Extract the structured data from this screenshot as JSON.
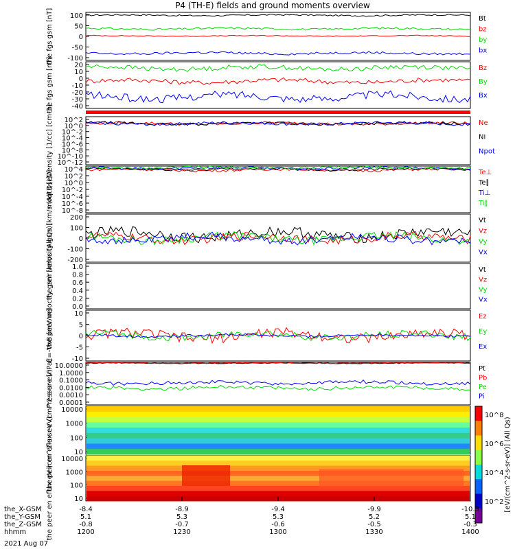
{
  "title": "P4 (TH-E) fields and ground moments overview",
  "x_axis": {
    "ticks": [
      {
        "label": "1200",
        "sx": -8.4,
        "sy": 5.1,
        "sz": -0.8
      },
      {
        "label": "1230",
        "sx": -8.9,
        "sy": 5.3,
        "sz": -0.7
      },
      {
        "label": "1300",
        "sx": -9.4,
        "sy": 5.3,
        "sz": -0.6
      },
      {
        "label": "1330",
        "sx": -9.9,
        "sy": 5.2,
        "sz": -0.5
      },
      {
        "label": "1400",
        "sx": -10.3,
        "sy": 5.1,
        "sz": -0.3
      }
    ],
    "row_labels": [
      "the_X-GSM",
      "the_Y-GSM",
      "the_Z-GSM",
      "hhmm"
    ],
    "date": "2021 Aug 07"
  },
  "colors": {
    "black": "#000000",
    "red": "#ff0000",
    "green": "#00dd00",
    "blue": "#0000ff"
  },
  "colorbar": {
    "labels": [
      "10^8",
      "10^6",
      "10^4",
      "10^2"
    ],
    "unit": "[eV/(cm^2-s-sr-eV)] (All Qs)"
  },
  "chart_data": [
    {
      "type": "line",
      "id": "fgs_gsm_total",
      "ylabel": "the fgs gsm [nT]",
      "ylim": [
        -100,
        100
      ],
      "ticks": [
        "100",
        "50",
        "0",
        "-50",
        "-100"
      ],
      "series": [
        {
          "name": "Bt",
          "color": "black",
          "level": 88,
          "wiggle": 3
        },
        {
          "name": "bz",
          "color": "red",
          "level": 2,
          "wiggle": 2
        },
        {
          "name": "by",
          "color": "green",
          "level": 32,
          "wiggle": 4
        },
        {
          "name": "bx",
          "color": "blue",
          "level": -70,
          "wiggle": 5
        }
      ]
    },
    {
      "type": "line",
      "id": "fgs_gsm_components",
      "ylabel": "the fgs gsm [nT]",
      "ylim": [
        -40,
        20
      ],
      "ticks": [
        "20",
        "10",
        "0",
        "-10",
        "-20",
        "-30",
        "-40"
      ],
      "series": [
        {
          "name": "Bz",
          "color": "red",
          "level": -5,
          "wiggle": 3
        },
        {
          "name": "By",
          "color": "green",
          "level": 12,
          "wiggle": 3
        },
        {
          "name": "Bx",
          "color": "blue",
          "level": -25,
          "wiggle": 5
        }
      ]
    },
    {
      "type": "line",
      "id": "density",
      "ylabel": "Density [1/cc] [cm-3]",
      "ylim": [
        -12,
        2
      ],
      "ticks": [
        "10^2",
        "10^0",
        "10^-2",
        "10^-4",
        "10^-6",
        "10^-8",
        "10^-10",
        "10^-12"
      ],
      "series": [
        {
          "name": "Ne",
          "color": "red",
          "level": 0,
          "wiggle": 0.4
        },
        {
          "name": "Ni",
          "color": "black",
          "level": 0,
          "wiggle": 0.4
        },
        {
          "name": "Npot",
          "color": "blue",
          "level": 0,
          "wiggle": 0.4
        }
      ]
    },
    {
      "type": "line",
      "id": "temperature",
      "ylabel": "moqt3 [eV]",
      "ylim": [
        -8,
        4
      ],
      "ticks": [
        "10^4",
        "10^2",
        "10^0",
        "10^-2",
        "10^-4",
        "10^-6",
        "10^-8"
      ],
      "series": [
        {
          "name": "Te⊥",
          "color": "red",
          "level": 3,
          "wiggle": 0.3
        },
        {
          "name": "Te∥",
          "color": "black",
          "level": 3.2,
          "wiggle": 0.3
        },
        {
          "name": "Ti⊥",
          "color": "blue",
          "level": 3.5,
          "wiggle": 0.3
        },
        {
          "name": "Ti∥",
          "color": "green",
          "level": 3.6,
          "wiggle": 0.3
        }
      ]
    },
    {
      "type": "line",
      "id": "peir_velocity",
      "ylabel": "the peir velocity gsm [km/s (All Qs)]",
      "ylim": [
        -200,
        200
      ],
      "ticks": [
        "200",
        "100",
        "0",
        "-100",
        "-200"
      ],
      "series": [
        {
          "name": "Vt",
          "color": "black",
          "level": 30,
          "wiggle": 45
        },
        {
          "name": "Vz",
          "color": "red",
          "level": 0,
          "wiggle": 35
        },
        {
          "name": "Vy",
          "color": "green",
          "level": 0,
          "wiggle": 35
        },
        {
          "name": "Vx",
          "color": "blue",
          "level": -5,
          "wiggle": 35
        }
      ]
    },
    {
      "type": "line",
      "id": "peer_velocity",
      "ylabel": "the peer velocity gsm [km/s (All Qs)]",
      "ylim": [
        0,
        1
      ],
      "ticks": [
        "1.0",
        "0.8",
        "0.6",
        "0.4",
        "0.2",
        "0.0"
      ],
      "series": [
        {
          "name": "Vt",
          "color": "black",
          "level": null,
          "wiggle": 0
        },
        {
          "name": "Vz",
          "color": "red",
          "level": null,
          "wiggle": 0
        },
        {
          "name": "Vy",
          "color": "green",
          "level": null,
          "wiggle": 0
        },
        {
          "name": "Vx",
          "color": "blue",
          "level": null,
          "wiggle": 0
        }
      ]
    },
    {
      "type": "line",
      "id": "efield",
      "ylabel": "E=-VxB [mV/m]",
      "ylim": [
        -10,
        10
      ],
      "ticks": [
        "10",
        "5",
        "0",
        "-5",
        "-10"
      ],
      "series": [
        {
          "name": "Ez",
          "color": "red",
          "level": 0,
          "wiggle": 2
        },
        {
          "name": "Ey",
          "color": "green",
          "level": 0,
          "wiggle": 1.5
        },
        {
          "name": "Ex",
          "color": "blue",
          "level": 0,
          "wiggle": 0.5
        }
      ]
    },
    {
      "type": "line",
      "id": "pressure",
      "ylabel": "Pressure [nPa]",
      "ylim": [
        -4,
        1
      ],
      "ticks": [
        "10.0000",
        "1.0000",
        "0.1000",
        "0.0100",
        "0.0010",
        "0.0001"
      ],
      "series": [
        {
          "name": "Pt",
          "color": "black",
          "level": 0.9,
          "wiggle": 0.05
        },
        {
          "name": "Pb",
          "color": "red",
          "level": 0.92,
          "wiggle": 0.05
        },
        {
          "name": "Pe",
          "color": "green",
          "level": -2,
          "wiggle": 0.2
        },
        {
          "name": "Pi",
          "color": "blue",
          "level": -1.4,
          "wiggle": 0.2
        }
      ],
      "legend_note": "(All Qs)"
    },
    {
      "type": "heatmap",
      "id": "peir_eflux",
      "ylabel": "the peir en eflux eV (cm^2-s-sr-eV)",
      "ylim": [
        5,
        20000
      ],
      "ticks": [
        "10000",
        "1000",
        "100",
        "10"
      ]
    },
    {
      "type": "heatmap",
      "id": "peer_eflux",
      "ylabel": "the peer en eflux eV (cm^2-s-sr-eV)",
      "ylim": [
        5,
        20000
      ],
      "ticks": [
        "10000",
        "1000",
        "100",
        "10"
      ]
    }
  ]
}
